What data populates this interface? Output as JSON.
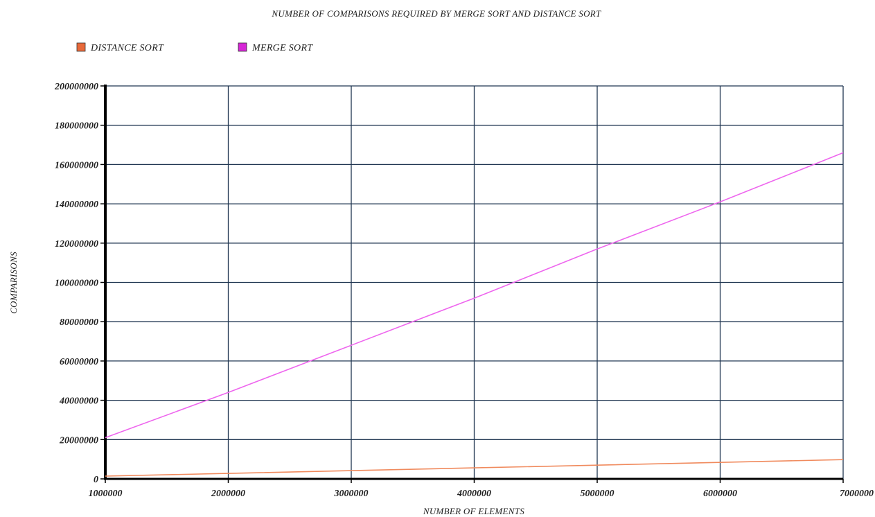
{
  "chart_data": {
    "type": "line",
    "title": "NUMBER OF COMPARISONS REQUIRED BY MERGE SORT AND DISTANCE SORT",
    "xlabel": "NUMBER OF ELEMENTS",
    "ylabel": "COMPARISONS",
    "x": [
      1000000,
      2000000,
      3000000,
      4000000,
      5000000,
      6000000,
      7000000
    ],
    "x_tick_labels": [
      "1000000",
      "2000000",
      "3000000",
      "4000000",
      "5000000",
      "6000000",
      "7000000"
    ],
    "y_tick_labels": [
      "0",
      "20000000",
      "40000000",
      "60000000",
      "80000000",
      "100000000",
      "120000000",
      "140000000",
      "160000000",
      "180000000",
      "200000000"
    ],
    "xlim": [
      1000000,
      7000000
    ],
    "ylim": [
      0,
      200000000
    ],
    "y_ticks": [
      0,
      20000000,
      40000000,
      60000000,
      80000000,
      100000000,
      120000000,
      140000000,
      160000000,
      180000000,
      200000000
    ],
    "grid": true,
    "legend_placement": "top-left",
    "series": [
      {
        "name": "DISTANCE SORT",
        "color": "#f08a5d",
        "legend_color": "#e8693a",
        "values": [
          1400000,
          2800000,
          4200000,
          5600000,
          7000000,
          8400000,
          9800000
        ]
      },
      {
        "name": "MERGE SORT",
        "color": "#ee66ee",
        "legend_color": "#d626d6",
        "values": [
          21000000,
          44000000,
          68000000,
          92000000,
          117000000,
          141000000,
          166000000
        ]
      }
    ],
    "colors": {
      "grid": "#1f3550",
      "axis": "#000000",
      "text": "#222222"
    }
  }
}
